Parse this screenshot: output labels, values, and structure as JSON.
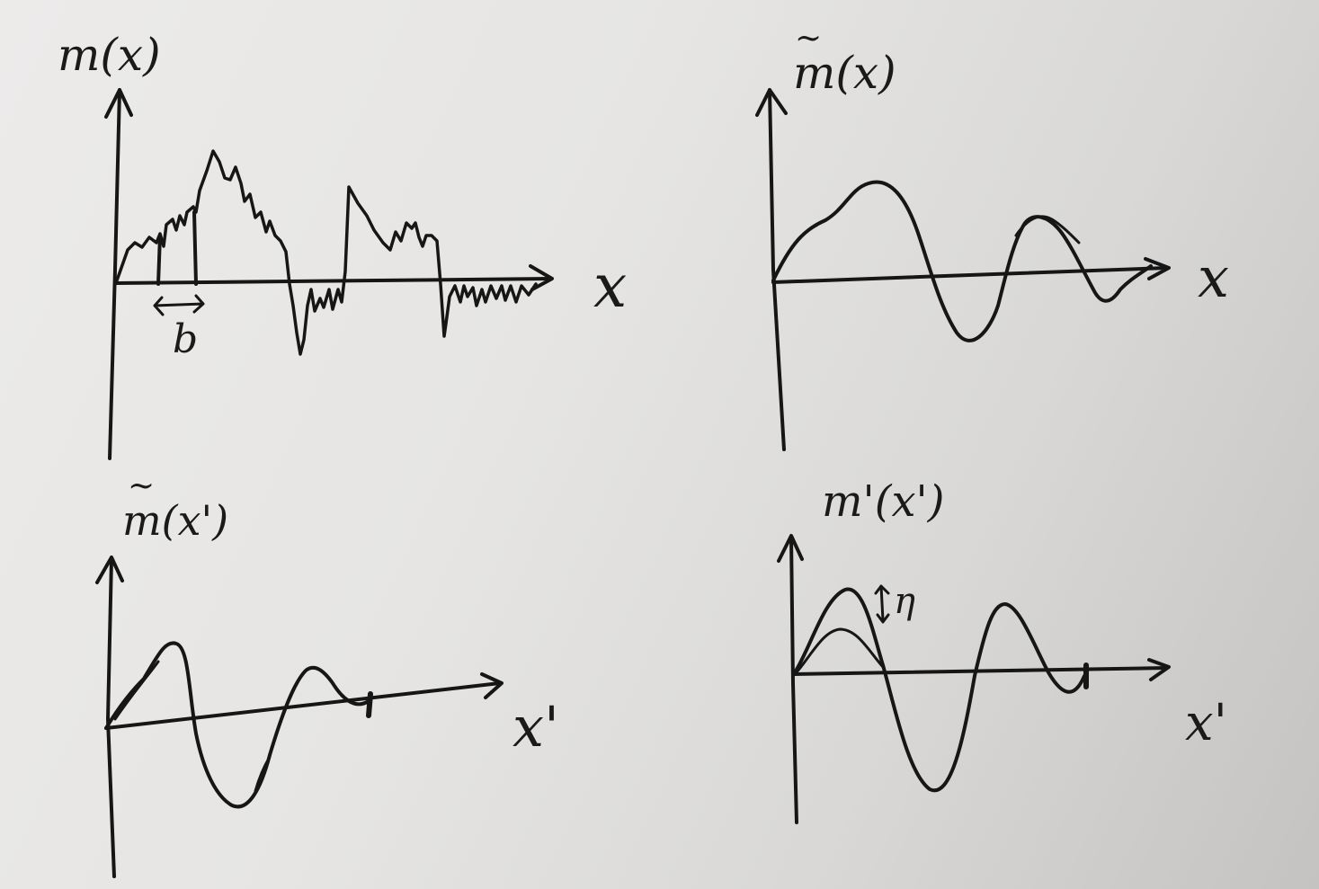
{
  "graphs": [
    {
      "id": "top-left",
      "ylabel": "m(x)",
      "xlabel": "x",
      "annotation": "b"
    },
    {
      "id": "top-right",
      "ylabel": "m(x)",
      "xlabel": "x",
      "tilde": true
    },
    {
      "id": "bottom-left",
      "ylabel": "m(x')",
      "xlabel": "x'",
      "tilde": true
    },
    {
      "id": "bottom-right",
      "ylabel": "m'(x')",
      "xlabel": "x'",
      "annotation": "η"
    }
  ]
}
